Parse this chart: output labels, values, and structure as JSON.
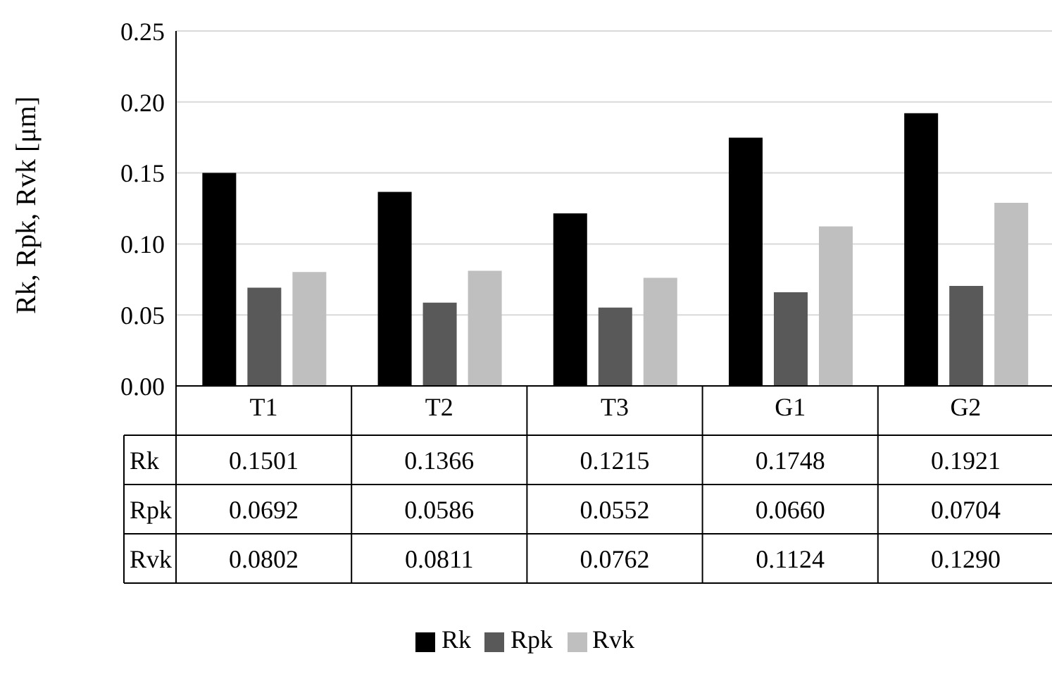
{
  "chart_data": {
    "type": "bar",
    "ylabel": "Rk, Rpk, Rvk [μm]",
    "categories": [
      "T1",
      "T2",
      "T3",
      "G1",
      "G2"
    ],
    "series": [
      {
        "name": "Rk",
        "color": "#000000",
        "values": [
          0.1501,
          0.1366,
          0.1215,
          0.1748,
          0.1921
        ],
        "value_labels": [
          "0.1501",
          "0.1366",
          "0.1215",
          "0.1748",
          "0.1921"
        ]
      },
      {
        "name": "Rpk",
        "color": "#595959",
        "values": [
          0.0692,
          0.0586,
          0.0552,
          0.066,
          0.0704
        ],
        "value_labels": [
          "0.0692",
          "0.0586",
          "0.0552",
          "0.0660",
          "0.0704"
        ]
      },
      {
        "name": "Rvk",
        "color": "#bfbfbf",
        "values": [
          0.0802,
          0.0811,
          0.0762,
          0.1124,
          0.129
        ],
        "value_labels": [
          "0.0802",
          "0.0811",
          "0.0762",
          "0.1124",
          "0.1290"
        ]
      }
    ],
    "ylim": [
      0,
      0.25
    ],
    "yticks": [
      {
        "value": 0,
        "label": "0.00"
      },
      {
        "value": 0.05,
        "label": "0.05"
      },
      {
        "value": 0.1,
        "label": "0.10"
      },
      {
        "value": 0.15,
        "label": "0.15"
      },
      {
        "value": 0.2,
        "label": "0.20"
      },
      {
        "value": 0.25,
        "label": "0.25"
      }
    ],
    "grid": "y",
    "legend": "bottom"
  }
}
